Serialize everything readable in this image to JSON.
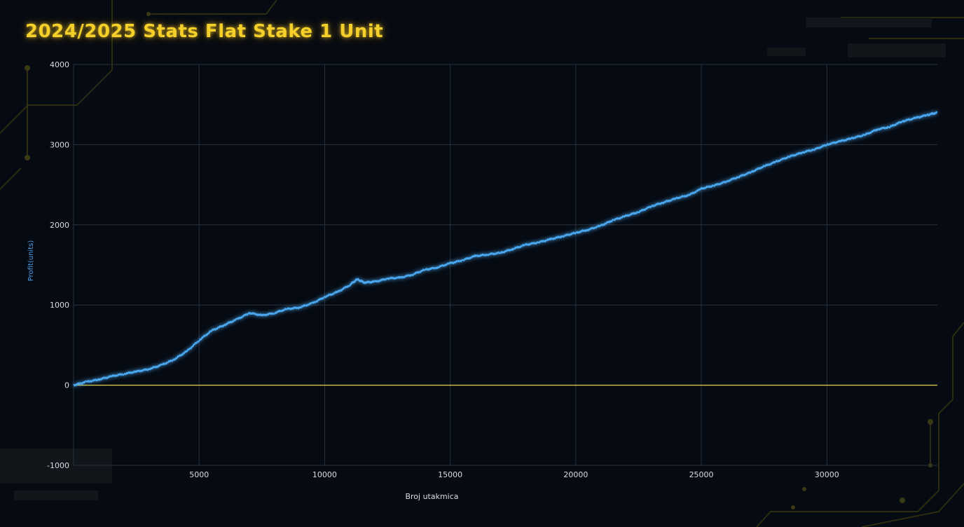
{
  "title": "2024/2025 Stats Flat Stake 1 Unit",
  "colors": {
    "background": "#060a12",
    "title": "#f5cf2a",
    "line": "#4aa8f0",
    "zero_line": "#e7cf4a",
    "grid": "#2a323e",
    "circuit": "#3a3a12"
  },
  "chart_data": {
    "type": "line",
    "title": "2024/2025 Stats Flat Stake 1 Unit",
    "xlabel": "Broj utakmica",
    "ylabel": "Profit(units)",
    "xlim": [
      0,
      34400
    ],
    "ylim": [
      -1000,
      4000
    ],
    "xticks": [
      5000,
      10000,
      15000,
      20000,
      25000,
      30000
    ],
    "xtick_labels": [
      "5000",
      "10000",
      "15000",
      "20000",
      "25000",
      "30000"
    ],
    "yticks": [
      -1000,
      0,
      1000,
      2000,
      3000,
      4000
    ],
    "ytick_labels": [
      "-1000",
      "0",
      "1000",
      "2000",
      "3000",
      "4000"
    ],
    "grid": true,
    "reference_line": {
      "y": 0
    },
    "series": [
      {
        "x": [
          0,
          500,
          1000,
          1500,
          2000,
          2500,
          3000,
          3500,
          4000,
          4500,
          5000,
          5500,
          6000,
          6500,
          7000,
          7500,
          8000,
          8500,
          9000,
          9500,
          10000,
          10500,
          11000,
          11300,
          11600,
          12000,
          12500,
          13000,
          13500,
          14000,
          14500,
          15000,
          15500,
          16000,
          16500,
          17000,
          17500,
          18000,
          18500,
          19000,
          19500,
          20000,
          20500,
          21000,
          21500,
          22000,
          22500,
          23000,
          23500,
          24000,
          24500,
          25000,
          25500,
          26000,
          26500,
          27000,
          27500,
          28000,
          28500,
          29000,
          29500,
          30000,
          30500,
          31000,
          31500,
          32000,
          32500,
          33000,
          33500,
          34000,
          34400
        ],
        "values": [
          0,
          40,
          70,
          110,
          140,
          170,
          200,
          250,
          320,
          420,
          560,
          680,
          750,
          820,
          900,
          870,
          900,
          950,
          970,
          1020,
          1100,
          1160,
          1250,
          1320,
          1280,
          1290,
          1330,
          1340,
          1380,
          1440,
          1470,
          1520,
          1560,
          1610,
          1630,
          1650,
          1700,
          1750,
          1780,
          1820,
          1860,
          1900,
          1940,
          1990,
          2060,
          2110,
          2160,
          2230,
          2280,
          2330,
          2370,
          2450,
          2490,
          2540,
          2600,
          2660,
          2730,
          2790,
          2850,
          2900,
          2940,
          3000,
          3040,
          3080,
          3120,
          3190,
          3220,
          3290,
          3330,
          3370,
          3400
        ]
      }
    ]
  }
}
